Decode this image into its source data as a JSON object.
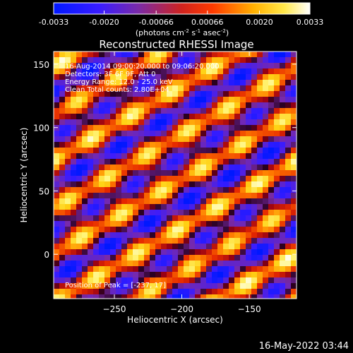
{
  "chart_data": {
    "type": "heatmap",
    "title": "Reconstructed RHESSI Image",
    "xlabel": "Heliocentric X (arcsec)",
    "ylabel": "Heliocentric Y (arcsec)",
    "xlim": [
      -295,
      -115
    ],
    "ylim": [
      -35,
      160
    ],
    "xticks": [
      -250,
      -200,
      -150
    ],
    "yticks": [
      0,
      50,
      100,
      150
    ],
    "colorbar": {
      "ticks": [
        "-0.0033",
        "-0.0020",
        "-0.00066",
        "0.00066",
        "0.0020",
        "0.0033"
      ],
      "tick_values": [
        -0.0033,
        -0.002,
        -0.00066,
        0.00066,
        0.002,
        0.0033
      ],
      "range": [
        -0.0033,
        0.0033
      ],
      "label_main": "(photons cm",
      "label_exp1": "-2",
      "label_mid": " s",
      "label_exp2": "-1",
      "label_end": " asec",
      "label_exp3": "-2",
      "label_close": ")"
    },
    "annotations": [
      "16-Aug-2014 09:00:20.000 to 09:06:20.000",
      "Detectors: 3F 6F 9F, Att 0",
      "Energy Range: 12.0 - 25.0 keV",
      "Clean     Total counts: 2.80E+04"
    ],
    "peak_label": "Position of Peak = [-237, 17]",
    "colormap": "blue-purple-red-yellow-white",
    "pattern": {
      "note": "fringe pattern",
      "kx": 0.055,
      "ky": 0.095,
      "amp_secondary": 0.35
    }
  },
  "footer": {
    "timestamp": "16-May-2022 03:44"
  },
  "colors": {
    "background": "#000000",
    "text": "#ffffff"
  }
}
